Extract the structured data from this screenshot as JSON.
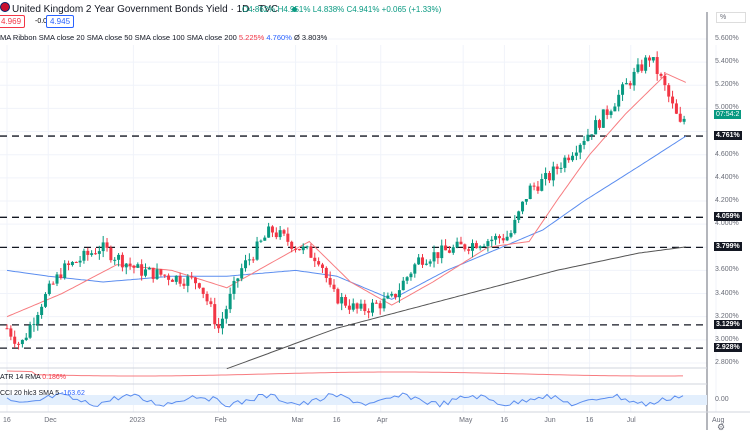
{
  "header": {
    "title": "United Kingdom 2 Year Government Bonds Yield · 1D · TVC",
    "ohlc": "O4.862% H4.951% L4.838% C4.941% +0.065 (+1.33%)",
    "sell": "4.969",
    "spread": "-0.024",
    "buy": "4.945",
    "indicator_label": "MA Ribbon SMA close 20 SMA close 50 SMA close 100 SMA close 200",
    "sma20": "5.225%",
    "sma50": "4.760%",
    "sma_other": "Ø 3.803%"
  },
  "price_axis": {
    "unit": "%",
    "ticks": [
      "5.600%",
      "5.400%",
      "5.200%",
      "5.000%",
      "4.600%",
      "4.400%",
      "4.200%",
      "4.000%",
      "3.600%",
      "3.400%",
      "3.200%",
      "3.000%",
      "2.800%"
    ],
    "countdown": "07:54:2"
  },
  "levels": [
    {
      "label": "4.761%",
      "value": 4.761
    },
    {
      "label": "4.059%",
      "value": 4.059
    },
    {
      "label": "3.799%",
      "value": 3.799
    },
    {
      "label": "3.129%",
      "value": 3.129
    },
    {
      "label": "2.928%",
      "value": 2.928
    }
  ],
  "atr": {
    "label": "ATR 14 RMA",
    "value": "0.186%"
  },
  "cci": {
    "label": "CCI 20 hlc3 SMA 5",
    "value": "-163.62",
    "zero": "0.00"
  },
  "time_axis": [
    {
      "label": "16",
      "day": 0
    },
    {
      "label": "Dec",
      "day": 15
    },
    {
      "label": "2023",
      "day": 46
    },
    {
      "label": "Feb",
      "day": 77
    },
    {
      "label": "Mar",
      "day": 105
    },
    {
      "label": "16",
      "day": 120
    },
    {
      "label": "Apr",
      "day": 136
    },
    {
      "label": "May",
      "day": 166
    },
    {
      "label": "16",
      "day": 181
    },
    {
      "label": "Jun",
      "day": 197
    },
    {
      "label": "16",
      "day": 212
    },
    {
      "label": "Jul",
      "day": 227
    },
    {
      "label": "Aug",
      "day": 258
    }
  ],
  "colors": {
    "up": "#089981",
    "down": "#f23645",
    "sma20": "#f77c80",
    "sma50": "#5b8def",
    "sma200": "#555555"
  },
  "chart_data": {
    "type": "candlestick",
    "yrange": [
      2.7,
      5.75
    ],
    "price_path": [
      [
        0,
        3.1
      ],
      [
        5,
        2.95
      ],
      [
        12,
        3.3
      ],
      [
        20,
        3.6
      ],
      [
        34,
        3.8
      ],
      [
        48,
        3.6
      ],
      [
        70,
        3.5
      ],
      [
        77,
        3.1
      ],
      [
        85,
        3.6
      ],
      [
        96,
        3.95
      ],
      [
        106,
        3.8
      ],
      [
        114,
        3.7
      ],
      [
        118,
        3.4
      ],
      [
        128,
        3.25
      ],
      [
        140,
        3.35
      ],
      [
        150,
        3.7
      ],
      [
        172,
        3.85
      ],
      [
        183,
        3.9
      ],
      [
        190,
        4.3
      ],
      [
        197,
        4.4
      ],
      [
        208,
        4.7
      ],
      [
        216,
        4.9
      ],
      [
        227,
        5.25
      ],
      [
        234,
        5.45
      ],
      [
        239,
        5.2
      ],
      [
        245,
        4.85
      ],
      [
        247,
        4.94
      ]
    ],
    "sma20": [
      [
        0,
        3.2
      ],
      [
        20,
        3.4
      ],
      [
        40,
        3.65
      ],
      [
        60,
        3.6
      ],
      [
        80,
        3.45
      ],
      [
        95,
        3.65
      ],
      [
        110,
        3.85
      ],
      [
        125,
        3.5
      ],
      [
        140,
        3.3
      ],
      [
        155,
        3.5
      ],
      [
        175,
        3.8
      ],
      [
        190,
        3.85
      ],
      [
        200,
        4.2
      ],
      [
        212,
        4.6
      ],
      [
        225,
        4.95
      ],
      [
        240,
        5.3
      ],
      [
        247,
        5.225
      ]
    ],
    "sma50": [
      [
        0,
        3.6
      ],
      [
        15,
        3.55
      ],
      [
        35,
        3.5
      ],
      [
        60,
        3.55
      ],
      [
        80,
        3.55
      ],
      [
        105,
        3.6
      ],
      [
        120,
        3.55
      ],
      [
        140,
        3.35
      ],
      [
        160,
        3.6
      ],
      [
        180,
        3.8
      ],
      [
        195,
        3.95
      ],
      [
        210,
        4.2
      ],
      [
        230,
        4.5
      ],
      [
        247,
        4.76
      ]
    ],
    "sma200": [
      [
        80,
        2.75
      ],
      [
        120,
        3.1
      ],
      [
        160,
        3.35
      ],
      [
        200,
        3.6
      ],
      [
        230,
        3.75
      ],
      [
        247,
        3.803
      ]
    ]
  }
}
